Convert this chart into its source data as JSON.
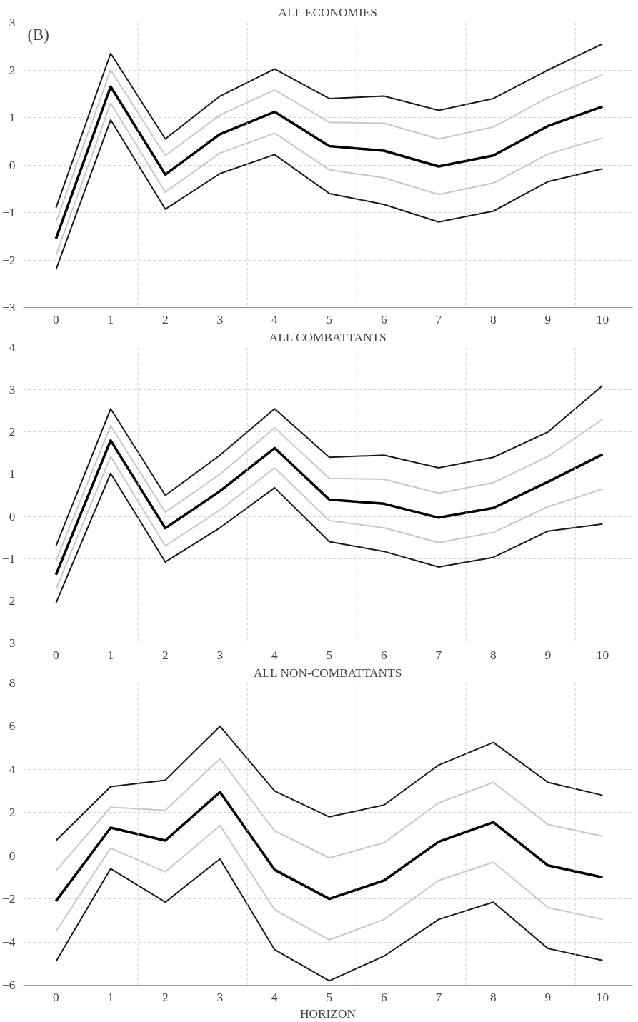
{
  "chart_data": [
    {
      "type": "line",
      "title": "ALL ECONOMIES",
      "annotations": [
        "(B)"
      ],
      "x": [
        0,
        1,
        2,
        3,
        4,
        5,
        6,
        7,
        8,
        9,
        10
      ],
      "xlim": [
        -0.6,
        10.55
      ],
      "xticks": [
        0,
        1,
        2,
        3,
        4,
        5,
        6,
        7,
        8,
        9,
        10
      ],
      "ylim": [
        -3,
        3
      ],
      "yticks": [
        -3,
        -2,
        -1,
        0,
        1,
        2,
        3
      ],
      "grid": "y",
      "marker": "none",
      "line_style": "solid",
      "ref_lines": [
        {
          "axis": "x",
          "value": 1.5,
          "color": "#d0d0d0",
          "line_style": "dashed"
        },
        {
          "axis": "x",
          "value": 3.5,
          "color": "#d0d0d0",
          "line_style": "dashed"
        },
        {
          "axis": "x",
          "value": 5.5,
          "color": "#d0d0d0",
          "line_style": "dashed"
        },
        {
          "axis": "x",
          "value": 7.5,
          "color": "#d0d0d0",
          "line_style": "dashed"
        },
        {
          "axis": "x",
          "value": 9.5,
          "color": "#d0d0d0",
          "line_style": "dashed"
        }
      ],
      "series": [
        {
          "color": "#1a1a1a",
          "values": [
            -0.9,
            2.35,
            0.55,
            1.45,
            2.02,
            1.4,
            1.45,
            1.15,
            1.4,
            2.0,
            2.55
          ]
        },
        {
          "color": "#c8c8c8",
          "values": [
            -1.2,
            2.0,
            0.2,
            1.05,
            1.58,
            0.9,
            0.88,
            0.55,
            0.8,
            1.42,
            1.9
          ]
        },
        {
          "color": "#000000",
          "values": [
            -1.55,
            1.65,
            -0.2,
            0.65,
            1.12,
            0.4,
            0.3,
            -0.03,
            0.2,
            0.82,
            1.23
          ]
        },
        {
          "color": "#c8c8c8",
          "values": [
            -1.9,
            1.3,
            -0.57,
            0.25,
            0.67,
            -0.1,
            -0.27,
            -0.62,
            -0.38,
            0.23,
            0.57
          ]
        },
        {
          "color": "#1a1a1a",
          "values": [
            -2.2,
            0.95,
            -0.93,
            -0.18,
            0.22,
            -0.6,
            -0.83,
            -1.2,
            -0.97,
            -0.35,
            -0.08
          ]
        }
      ]
    },
    {
      "type": "line",
      "title": "ALL COMBATTANTS",
      "x": [
        0,
        1,
        2,
        3,
        4,
        5,
        6,
        7,
        8,
        9,
        10
      ],
      "xlim": [
        -0.6,
        10.55
      ],
      "xticks": [
        0,
        1,
        2,
        3,
        4,
        5,
        6,
        7,
        8,
        9,
        10
      ],
      "ylim": [
        -3,
        4
      ],
      "yticks": [
        -3,
        -2,
        -1,
        0,
        1,
        2,
        3,
        4
      ],
      "grid": "y",
      "marker": "none",
      "line_style": "solid",
      "ref_lines": [
        {
          "axis": "x",
          "value": 1.5,
          "color": "#d0d0d0",
          "line_style": "dashed"
        },
        {
          "axis": "x",
          "value": 3.5,
          "color": "#d0d0d0",
          "line_style": "dashed"
        },
        {
          "axis": "x",
          "value": 5.5,
          "color": "#d0d0d0",
          "line_style": "dashed"
        },
        {
          "axis": "x",
          "value": 7.5,
          "color": "#d0d0d0",
          "line_style": "dashed"
        },
        {
          "axis": "x",
          "value": 9.5,
          "color": "#d0d0d0",
          "line_style": "dashed"
        }
      ],
      "series": [
        {
          "color": "#1a1a1a",
          "values": [
            -0.7,
            2.55,
            0.5,
            1.45,
            2.55,
            1.4,
            1.45,
            1.15,
            1.4,
            2.0,
            3.1
          ]
        },
        {
          "color": "#c8c8c8",
          "values": [
            -1.05,
            2.15,
            0.1,
            1.0,
            2.1,
            0.9,
            0.88,
            0.55,
            0.8,
            1.42,
            2.3
          ]
        },
        {
          "color": "#000000",
          "values": [
            -1.38,
            1.8,
            -0.28,
            0.6,
            1.62,
            0.4,
            0.3,
            -0.03,
            0.2,
            0.82,
            1.47
          ]
        },
        {
          "color": "#c8c8c8",
          "values": [
            -1.72,
            1.42,
            -0.7,
            0.15,
            1.15,
            -0.1,
            -0.27,
            -0.62,
            -0.38,
            0.23,
            0.65
          ]
        },
        {
          "color": "#1a1a1a",
          "values": [
            -2.05,
            1.02,
            -1.08,
            -0.27,
            0.68,
            -0.6,
            -0.83,
            -1.2,
            -0.97,
            -0.35,
            -0.18
          ]
        }
      ]
    },
    {
      "type": "line",
      "title": "ALL NON-COMBATTANTS",
      "xlabel": "HORIZON",
      "x": [
        0,
        1,
        2,
        3,
        4,
        5,
        6,
        7,
        8,
        9,
        10
      ],
      "xlim": [
        -0.6,
        10.55
      ],
      "xticks": [
        0,
        1,
        2,
        3,
        4,
        5,
        6,
        7,
        8,
        9,
        10
      ],
      "ylim": [
        -6,
        8
      ],
      "yticks": [
        -6,
        -4,
        -2,
        0,
        2,
        4,
        6,
        8
      ],
      "grid": "y",
      "marker": "none",
      "line_style": "solid",
      "ref_lines": [
        {
          "axis": "x",
          "value": 1.5,
          "color": "#d0d0d0",
          "line_style": "dashed"
        },
        {
          "axis": "x",
          "value": 3.5,
          "color": "#d0d0d0",
          "line_style": "dashed"
        },
        {
          "axis": "x",
          "value": 5.5,
          "color": "#d0d0d0",
          "line_style": "dashed"
        },
        {
          "axis": "x",
          "value": 7.5,
          "color": "#d0d0d0",
          "line_style": "dashed"
        },
        {
          "axis": "x",
          "value": 9.5,
          "color": "#d0d0d0",
          "line_style": "dashed"
        }
      ],
      "series": [
        {
          "color": "#1a1a1a",
          "values": [
            0.7,
            3.2,
            3.5,
            6.0,
            3.0,
            1.8,
            2.35,
            4.2,
            5.25,
            3.4,
            2.8
          ]
        },
        {
          "color": "#c8c8c8",
          "values": [
            -0.7,
            2.25,
            2.1,
            4.5,
            1.15,
            -0.1,
            0.6,
            2.45,
            3.4,
            1.45,
            0.9
          ]
        },
        {
          "color": "#000000",
          "values": [
            -2.1,
            1.3,
            0.7,
            2.95,
            -0.65,
            -2.0,
            -1.15,
            0.65,
            1.55,
            -0.45,
            -1.0
          ]
        },
        {
          "color": "#c8c8c8",
          "values": [
            -3.5,
            0.35,
            -0.75,
            1.4,
            -2.5,
            -3.9,
            -2.95,
            -1.15,
            -0.3,
            -2.4,
            -2.95
          ]
        },
        {
          "color": "#1a1a1a",
          "values": [
            -4.9,
            -0.6,
            -2.15,
            -0.15,
            -4.35,
            -5.8,
            -4.65,
            -2.95,
            -2.15,
            -4.3,
            -4.85
          ]
        }
      ]
    }
  ]
}
